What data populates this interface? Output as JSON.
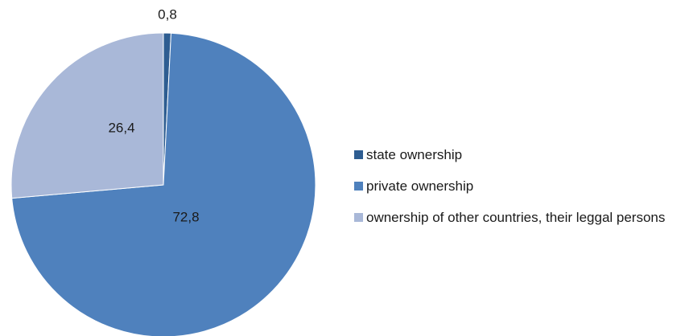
{
  "chart_data": {
    "type": "pie",
    "title": "",
    "slices": [
      {
        "name": "state ownership",
        "value": 0.8,
        "label": "0,8",
        "color": "#2e5d91"
      },
      {
        "name": "private ownership",
        "value": 72.8,
        "label": "72,8",
        "color": "#4f81bd"
      },
      {
        "name": "ownership of other countries, their leggal persons",
        "value": 26.4,
        "label": "26,4",
        "color": "#a9b8d8"
      }
    ],
    "legend_position": "right"
  },
  "legend": {
    "items": [
      {
        "label": "state ownership",
        "color": "#2e5d91"
      },
      {
        "label": "private ownership",
        "color": "#4f81bd"
      },
      {
        "label": "ownership of other countries, their leggal persons",
        "color": "#a9b8d8"
      }
    ]
  }
}
